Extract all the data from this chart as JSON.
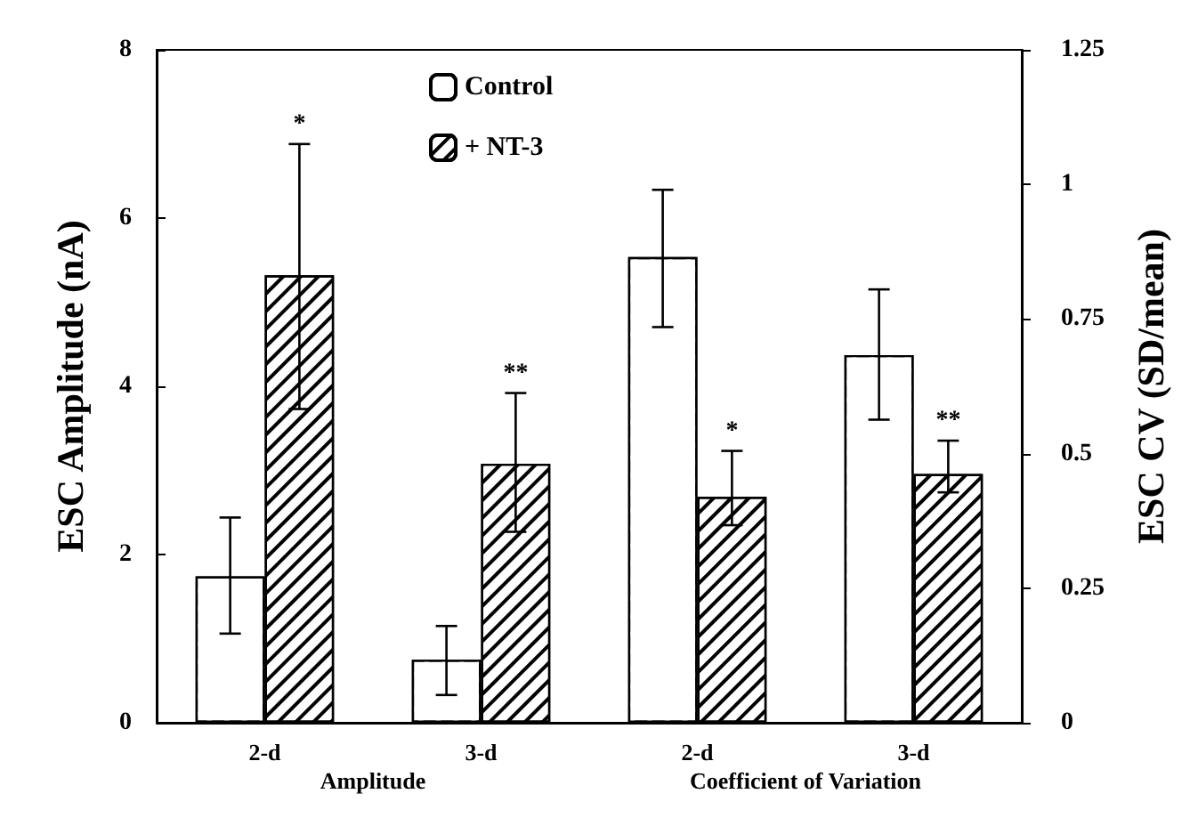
{
  "chart_data": {
    "type": "bar",
    "ylabel": "ESC Amplitude (nA)",
    "y2label": "ESC CV (SD/mean)",
    "categories": [
      "2-d",
      "3-d",
      "2-d",
      "3-d"
    ],
    "series": [
      {
        "name": "Control",
        "color": "#ffffff",
        "values": [
          1.74,
          0.75,
          null,
          null
        ],
        "errors": [
          [
            1.06,
            2.44
          ],
          [
            0.33,
            1.15
          ],
          null,
          null
        ]
      },
      {
        "name": "+ NT-3",
        "color": "#000000",
        "values": [
          5.32,
          3.08,
          null,
          null
        ],
        "errors": [
          [
            3.73,
            6.88
          ],
          [
            2.27,
            3.92
          ],
          null,
          null
        ]
      },
      {
        "color": "#ffffff",
        "axis": "y2",
        "values": [
          null,
          null,
          0.865,
          0.683
        ],
        "errors": [
          null,
          null,
          [
            0.735,
            0.99
          ],
          [
            0.563,
            0.805
          ]
        ]
      },
      {
        "color": "#000000",
        "axis": "y2",
        "values": [
          null,
          null,
          0.42,
          0.462
        ],
        "errors": [
          null,
          null,
          [
            0.367,
            0.505
          ],
          [
            0.428,
            0.524
          ]
        ]
      }
    ],
    "ylim": [
      0,
      8
    ],
    "yticks": [
      0,
      2,
      4,
      6,
      8
    ],
    "y2lim": [
      0,
      1.25
    ],
    "y2ticks": [
      0,
      0.25,
      0.5,
      0.75,
      1,
      1.25
    ],
    "annotations": [
      "*",
      "**",
      "*",
      "**",
      "Amplitude",
      "Coefficient of Variation"
    ],
    "legend": "top",
    "grid": false
  }
}
